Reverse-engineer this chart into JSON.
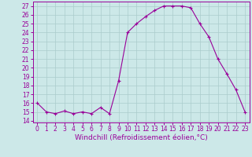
{
  "x": [
    0,
    1,
    2,
    3,
    4,
    5,
    6,
    7,
    8,
    9,
    10,
    11,
    12,
    13,
    14,
    15,
    16,
    17,
    18,
    19,
    20,
    21,
    22,
    23
  ],
  "y": [
    16,
    15,
    14.8,
    15.1,
    14.8,
    15,
    14.8,
    15.5,
    14.8,
    18.5,
    24,
    25,
    25.8,
    26.5,
    27,
    27,
    27,
    26.8,
    25,
    23.5,
    21,
    19.3,
    17.5,
    15
  ],
  "line_color": "#990099",
  "marker": "+",
  "bg_color": "#cce8e8",
  "grid_color": "#aacccc",
  "xlabel": "Windchill (Refroidissement éolien,°C)",
  "xlim": [
    -0.5,
    23.5
  ],
  "ylim": [
    13.8,
    27.5
  ],
  "yticks": [
    14,
    15,
    16,
    17,
    18,
    19,
    20,
    21,
    22,
    23,
    24,
    25,
    26,
    27
  ],
  "xticks": [
    0,
    1,
    2,
    3,
    4,
    5,
    6,
    7,
    8,
    9,
    10,
    11,
    12,
    13,
    14,
    15,
    16,
    17,
    18,
    19,
    20,
    21,
    22,
    23
  ],
  "xlabel_fontsize": 6.5,
  "tick_fontsize": 5.5
}
